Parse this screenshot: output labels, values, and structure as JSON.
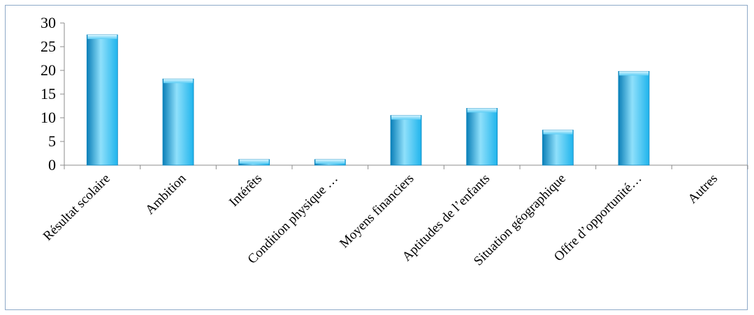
{
  "chart_data": {
    "type": "bar",
    "categories": [
      "Résultat scolaire",
      "Ambition",
      "Intérêts",
      "Condition physique …",
      "Moyens financiers",
      "Aptitudes de l’enfants",
      "Situation géographique",
      "Offre d’opportunité…",
      "Autres"
    ],
    "values": [
      27.5,
      18.2,
      1.2,
      1.2,
      10.5,
      12.0,
      7.4,
      19.8,
      0
    ],
    "ylim": [
      0,
      30
    ],
    "yticks": [
      0,
      5,
      10,
      15,
      20,
      25,
      30
    ],
    "grid": false,
    "bar_color": "#1fb4ec",
    "bar_color_light": "#8fe0fb",
    "bar_color_dark": "#0a7fb8"
  }
}
